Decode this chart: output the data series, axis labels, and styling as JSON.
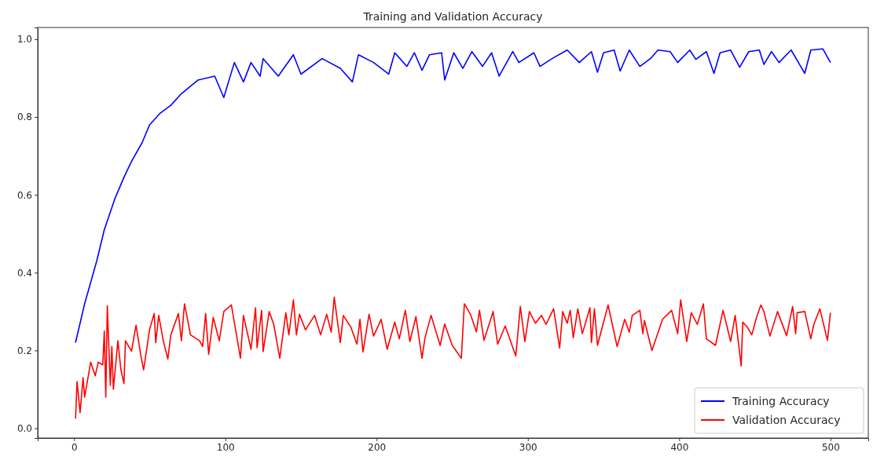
{
  "chart_data": {
    "type": "line",
    "title": "Training and Validation Accuracy",
    "xlim": [
      -24,
      525
    ],
    "xticks": [
      0,
      100,
      200,
      300,
      400,
      500
    ],
    "ylim": [
      -0.025,
      1.03
    ],
    "yticks": [
      {
        "value": 0,
        "label": "0.0"
      },
      {
        "value": 0.2,
        "label": "0.2"
      },
      {
        "value": 0.4,
        "label": "0.4"
      },
      {
        "value": 0.6,
        "label": "0.6"
      },
      {
        "value": 0.8,
        "label": "0.8"
      },
      {
        "value": 1,
        "label": "1.0"
      }
    ],
    "legend": "bottom right",
    "grid": false,
    "series": [
      {
        "name": "Training Accuracy",
        "color": "#0000ff",
        "x": [
          1,
          7,
          15,
          20,
          27,
          33,
          38,
          45,
          50,
          57,
          64,
          71,
          82,
          93,
          99,
          106,
          112,
          117,
          123,
          125,
          135,
          145,
          150,
          164,
          176,
          184,
          188,
          198,
          208,
          212,
          220,
          225,
          230,
          235,
          243,
          245,
          251,
          257,
          263,
          270,
          276,
          281,
          290,
          294,
          304,
          308,
          316,
          326,
          334,
          342,
          346,
          350,
          357,
          361,
          367,
          374,
          381,
          386,
          394,
          399,
          407,
          411,
          418,
          423,
          427,
          434,
          440,
          446,
          453,
          456,
          461,
          466,
          474,
          483,
          487,
          495,
          500
        ],
        "values": [
          0.22,
          0.32,
          0.43,
          0.51,
          0.59,
          0.645,
          0.686,
          0.734,
          0.78,
          0.81,
          0.83,
          0.86,
          0.895,
          0.905,
          0.85,
          0.94,
          0.89,
          0.94,
          0.905,
          0.95,
          0.905,
          0.96,
          0.91,
          0.95,
          0.925,
          0.89,
          0.96,
          0.94,
          0.91,
          0.965,
          0.93,
          0.965,
          0.92,
          0.96,
          0.965,
          0.895,
          0.965,
          0.925,
          0.968,
          0.93,
          0.965,
          0.905,
          0.968,
          0.94,
          0.965,
          0.93,
          0.95,
          0.972,
          0.94,
          0.968,
          0.915,
          0.965,
          0.972,
          0.918,
          0.972,
          0.93,
          0.95,
          0.972,
          0.968,
          0.94,
          0.972,
          0.948,
          0.968,
          0.912,
          0.965,
          0.972,
          0.928,
          0.968,
          0.972,
          0.935,
          0.968,
          0.94,
          0.972,
          0.912,
          0.972,
          0.975,
          0.94
        ]
      },
      {
        "name": "Validation Accuracy",
        "color": "#ff0000",
        "x": [
          1,
          2,
          4,
          6,
          7,
          11,
          14,
          16,
          19,
          20,
          21,
          22,
          24,
          25,
          26,
          29,
          31,
          33,
          34,
          38,
          41,
          44,
          46,
          50,
          53,
          54,
          56,
          59,
          62,
          64,
          69,
          71,
          73,
          77,
          83,
          85,
          87,
          89,
          92,
          96,
          99,
          104,
          110,
          112,
          117,
          120,
          121,
          124,
          125,
          129,
          132,
          136,
          140,
          142,
          145,
          147,
          149,
          153,
          159,
          163,
          167,
          170,
          172,
          176,
          178,
          183,
          187,
          189,
          191,
          195,
          198,
          203,
          207,
          212,
          215,
          219,
          222,
          226,
          230,
          232,
          236,
          242,
          245,
          250,
          256,
          258,
          262,
          266,
          268,
          271,
          277,
          280,
          285,
          292,
          295,
          298,
          301,
          305,
          309,
          312,
          317,
          321,
          323,
          326,
          328,
          330,
          333,
          336,
          341,
          342,
          344,
          346,
          353,
          359,
          364,
          367,
          369,
          374,
          376,
          377,
          382,
          389,
          395,
          399,
          401,
          405,
          408,
          412,
          416,
          418,
          424,
          429,
          434,
          437,
          441,
          442,
          445,
          448,
          451,
          454,
          456,
          460,
          465,
          471,
          475,
          477,
          478,
          483,
          487,
          489,
          493,
          498,
          500
        ],
        "values": [
          0.025,
          0.12,
          0.04,
          0.13,
          0.08,
          0.17,
          0.135,
          0.17,
          0.163,
          0.25,
          0.08,
          0.315,
          0.11,
          0.21,
          0.1,
          0.225,
          0.15,
          0.115,
          0.225,
          0.198,
          0.265,
          0.19,
          0.15,
          0.255,
          0.295,
          0.22,
          0.29,
          0.225,
          0.178,
          0.24,
          0.295,
          0.225,
          0.32,
          0.24,
          0.225,
          0.21,
          0.295,
          0.19,
          0.285,
          0.225,
          0.3,
          0.317,
          0.18,
          0.29,
          0.203,
          0.31,
          0.207,
          0.303,
          0.197,
          0.3,
          0.267,
          0.18,
          0.297,
          0.24,
          0.33,
          0.24,
          0.293,
          0.253,
          0.29,
          0.24,
          0.293,
          0.247,
          0.337,
          0.22,
          0.29,
          0.26,
          0.216,
          0.28,
          0.196,
          0.293,
          0.237,
          0.28,
          0.203,
          0.273,
          0.23,
          0.303,
          0.223,
          0.287,
          0.18,
          0.233,
          0.29,
          0.213,
          0.268,
          0.213,
          0.18,
          0.32,
          0.293,
          0.248,
          0.303,
          0.226,
          0.3,
          0.216,
          0.263,
          0.186,
          0.313,
          0.223,
          0.3,
          0.27,
          0.29,
          0.267,
          0.307,
          0.206,
          0.3,
          0.27,
          0.303,
          0.233,
          0.307,
          0.243,
          0.31,
          0.22,
          0.307,
          0.213,
          0.317,
          0.21,
          0.28,
          0.247,
          0.29,
          0.303,
          0.243,
          0.277,
          0.2,
          0.28,
          0.303,
          0.243,
          0.33,
          0.223,
          0.297,
          0.267,
          0.32,
          0.23,
          0.213,
          0.303,
          0.223,
          0.29,
          0.16,
          0.273,
          0.26,
          0.24,
          0.283,
          0.317,
          0.3,
          0.237,
          0.3,
          0.238,
          0.313,
          0.243,
          0.297,
          0.3,
          0.23,
          0.267,
          0.307,
          0.226,
          0.297
        ]
      }
    ]
  }
}
